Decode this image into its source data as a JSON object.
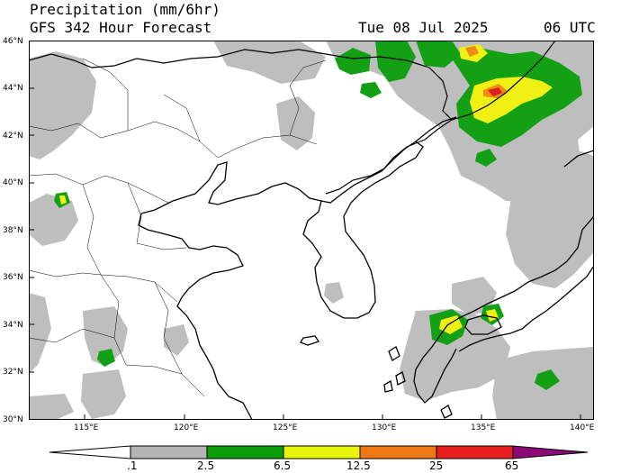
{
  "header": {
    "title": "Precipitation (mm/6hr)",
    "subtitle": "GFS 342 Hour Forecast",
    "valid_date": "Tue 08 Jul 2025",
    "valid_time": "06 UTC"
  },
  "map": {
    "lat_range": [
      30,
      46
    ],
    "lon_range": [
      112.5,
      141
    ],
    "lat_ticks": [
      "30°N",
      "32°N",
      "34°N",
      "36°N",
      "38°N",
      "40°N",
      "42°N",
      "44°N",
      "46°N"
    ],
    "lon_ticks": [
      "115°E",
      "120°E",
      "125°E",
      "130°E",
      "135°E",
      "140°E"
    ]
  },
  "colorbar": {
    "labels": [
      ".1",
      "2.5",
      "6.5",
      "12.5",
      "25",
      "65"
    ],
    "colors": [
      "#b4b4b4",
      "#0a9d0a",
      "#e6f50a",
      "#f07814",
      "#e61e1e",
      "#8c0a78"
    ]
  },
  "colors": {
    "light_precip": "#bebebe",
    "moderate": "#14a014",
    "heavy": "#f0f014",
    "very_heavy": "#f08c14",
    "extreme": "#dc1e1e"
  }
}
